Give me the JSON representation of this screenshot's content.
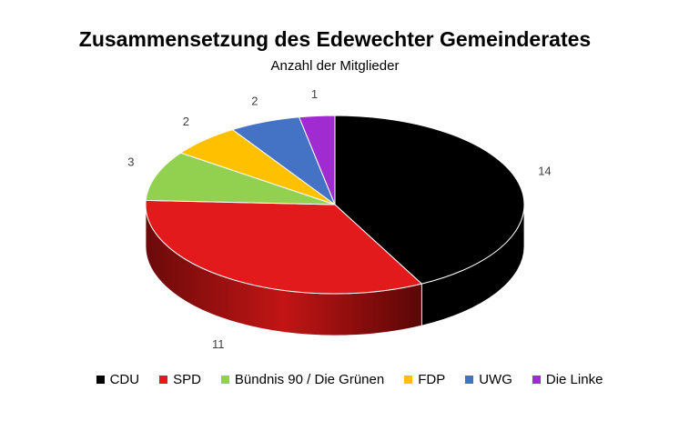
{
  "title": "Zusammensetzung des Edewechter Gemeinderates",
  "subtitle": "Anzahl der Mitglieder",
  "chart_data": {
    "type": "pie",
    "title": "Zusammensetzung des Edewechter Gemeinderates",
    "subtitle": "Anzahl der Mitglieder",
    "style": "3d",
    "legend": "bottom",
    "categories": [
      "CDU",
      "SPD",
      "Bündnis 90 / Die Grünen",
      "FDP",
      "UWG",
      "Die Linke"
    ],
    "values": [
      14,
      11,
      3,
      2,
      2,
      1
    ],
    "colors": [
      "#000000",
      "#e31a1c",
      "#92d050",
      "#ffc000",
      "#4472c4",
      "#a02bd0"
    ]
  }
}
